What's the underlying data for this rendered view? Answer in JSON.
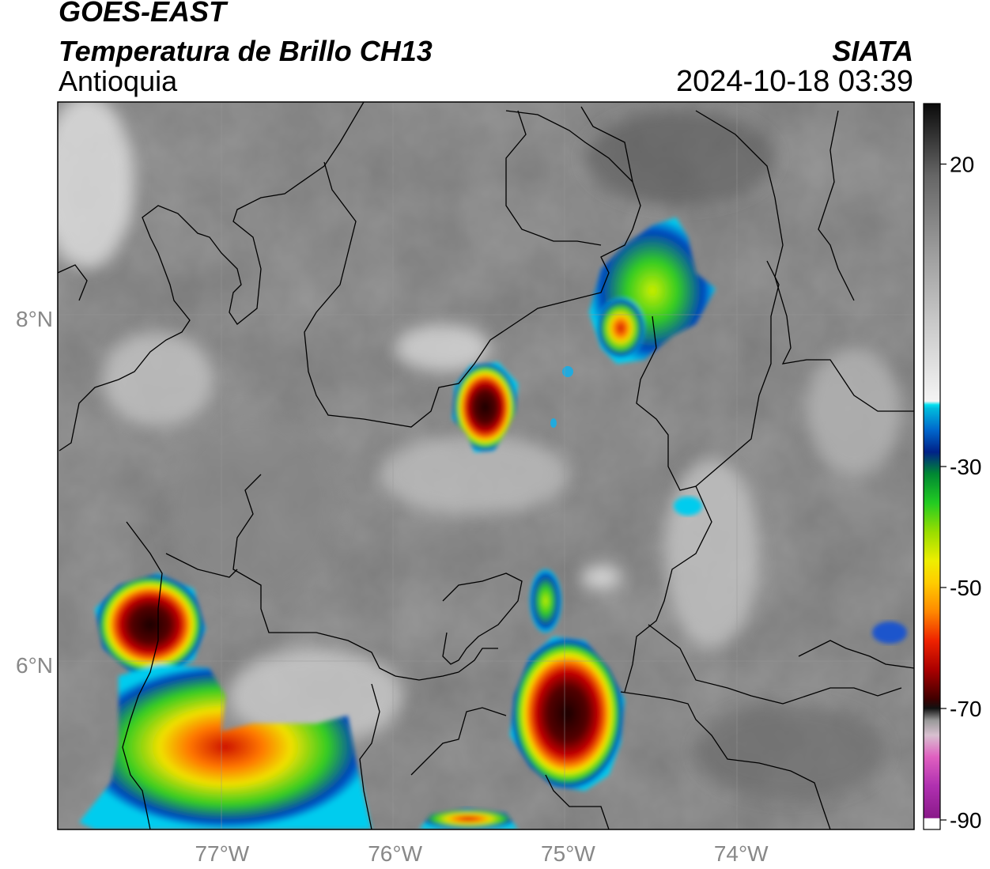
{
  "header": {
    "satellite": "GOES-EAST",
    "product": "Temperatura de Brillo CH13",
    "region": "Antioquia",
    "organization": "SIATA",
    "timestamp": "2024-10-18 03:39"
  },
  "map": {
    "lon_range": [
      -77.95,
      -73.0
    ],
    "lat_range": [
      5.05,
      9.25
    ],
    "lon_ticks": [
      {
        "value": -77,
        "label": "77°W"
      },
      {
        "value": -76,
        "label": "76°W"
      },
      {
        "value": -75,
        "label": "75°W"
      },
      {
        "value": -74,
        "label": "74°W"
      }
    ],
    "lat_ticks": [
      {
        "value": 8,
        "label": "8°N"
      },
      {
        "value": 6,
        "label": "6°N"
      }
    ],
    "grid": true
  },
  "colorbar": {
    "vmin": -90,
    "vmax": 30,
    "ticks": [
      {
        "value": 20,
        "label": "20"
      },
      {
        "value": -30,
        "label": "-30"
      },
      {
        "value": -50,
        "label": "-50"
      },
      {
        "value": -70,
        "label": "-70"
      },
      {
        "value": -90,
        "label": "-90"
      }
    ]
  },
  "colors": {
    "cold_core": "#3a0000",
    "red": "#cc0000",
    "orange": "#ff8800",
    "yellow": "#f0f000",
    "green": "#22cc22",
    "blue": "#0033cc",
    "cyan": "#00ccee",
    "magenta": "#cc33cc"
  }
}
